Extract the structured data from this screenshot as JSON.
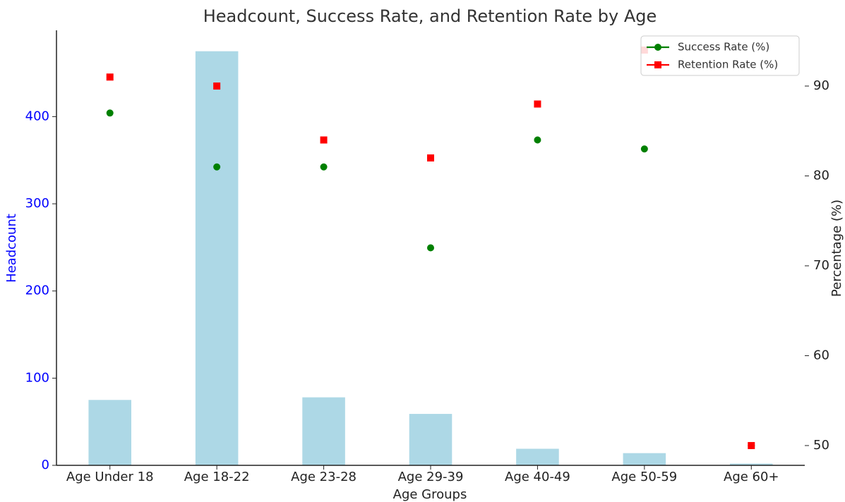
{
  "chart_data": {
    "type": "bar_line",
    "title": "Headcount, Success Rate, and Retention Rate by Age",
    "x_label": "Age Groups",
    "y_label": "Headcount",
    "y2_label": "Percentage (%)",
    "categories": [
      "Age Under 18",
      "Age 18-22",
      "Age 23-28",
      "Age 29-39",
      "Age 40-49",
      "Age 50-59",
      "Age 60+"
    ],
    "bar": {
      "name": "Headcount",
      "color": "#add8e6",
      "values": [
        75,
        475,
        78,
        59,
        19,
        14,
        2
      ]
    },
    "series": [
      {
        "name": "Success Rate (%)",
        "color": "#008000",
        "marker": "circle",
        "axis": "y2",
        "values": [
          87,
          81,
          81,
          72,
          84,
          83,
          50
        ]
      },
      {
        "name": "Retention Rate (%)",
        "color": "#ff0000",
        "marker": "square",
        "axis": "y2",
        "values": [
          91,
          90,
          84,
          82,
          88,
          94,
          50
        ]
      }
    ],
    "ylim": [
      0,
      499
    ],
    "yticks": [
      0,
      100,
      200,
      300,
      400
    ],
    "y2lim": [
      47.8,
      96.2
    ],
    "y2ticks": [
      50,
      60,
      70,
      80,
      90
    ],
    "legend": "upper right"
  }
}
